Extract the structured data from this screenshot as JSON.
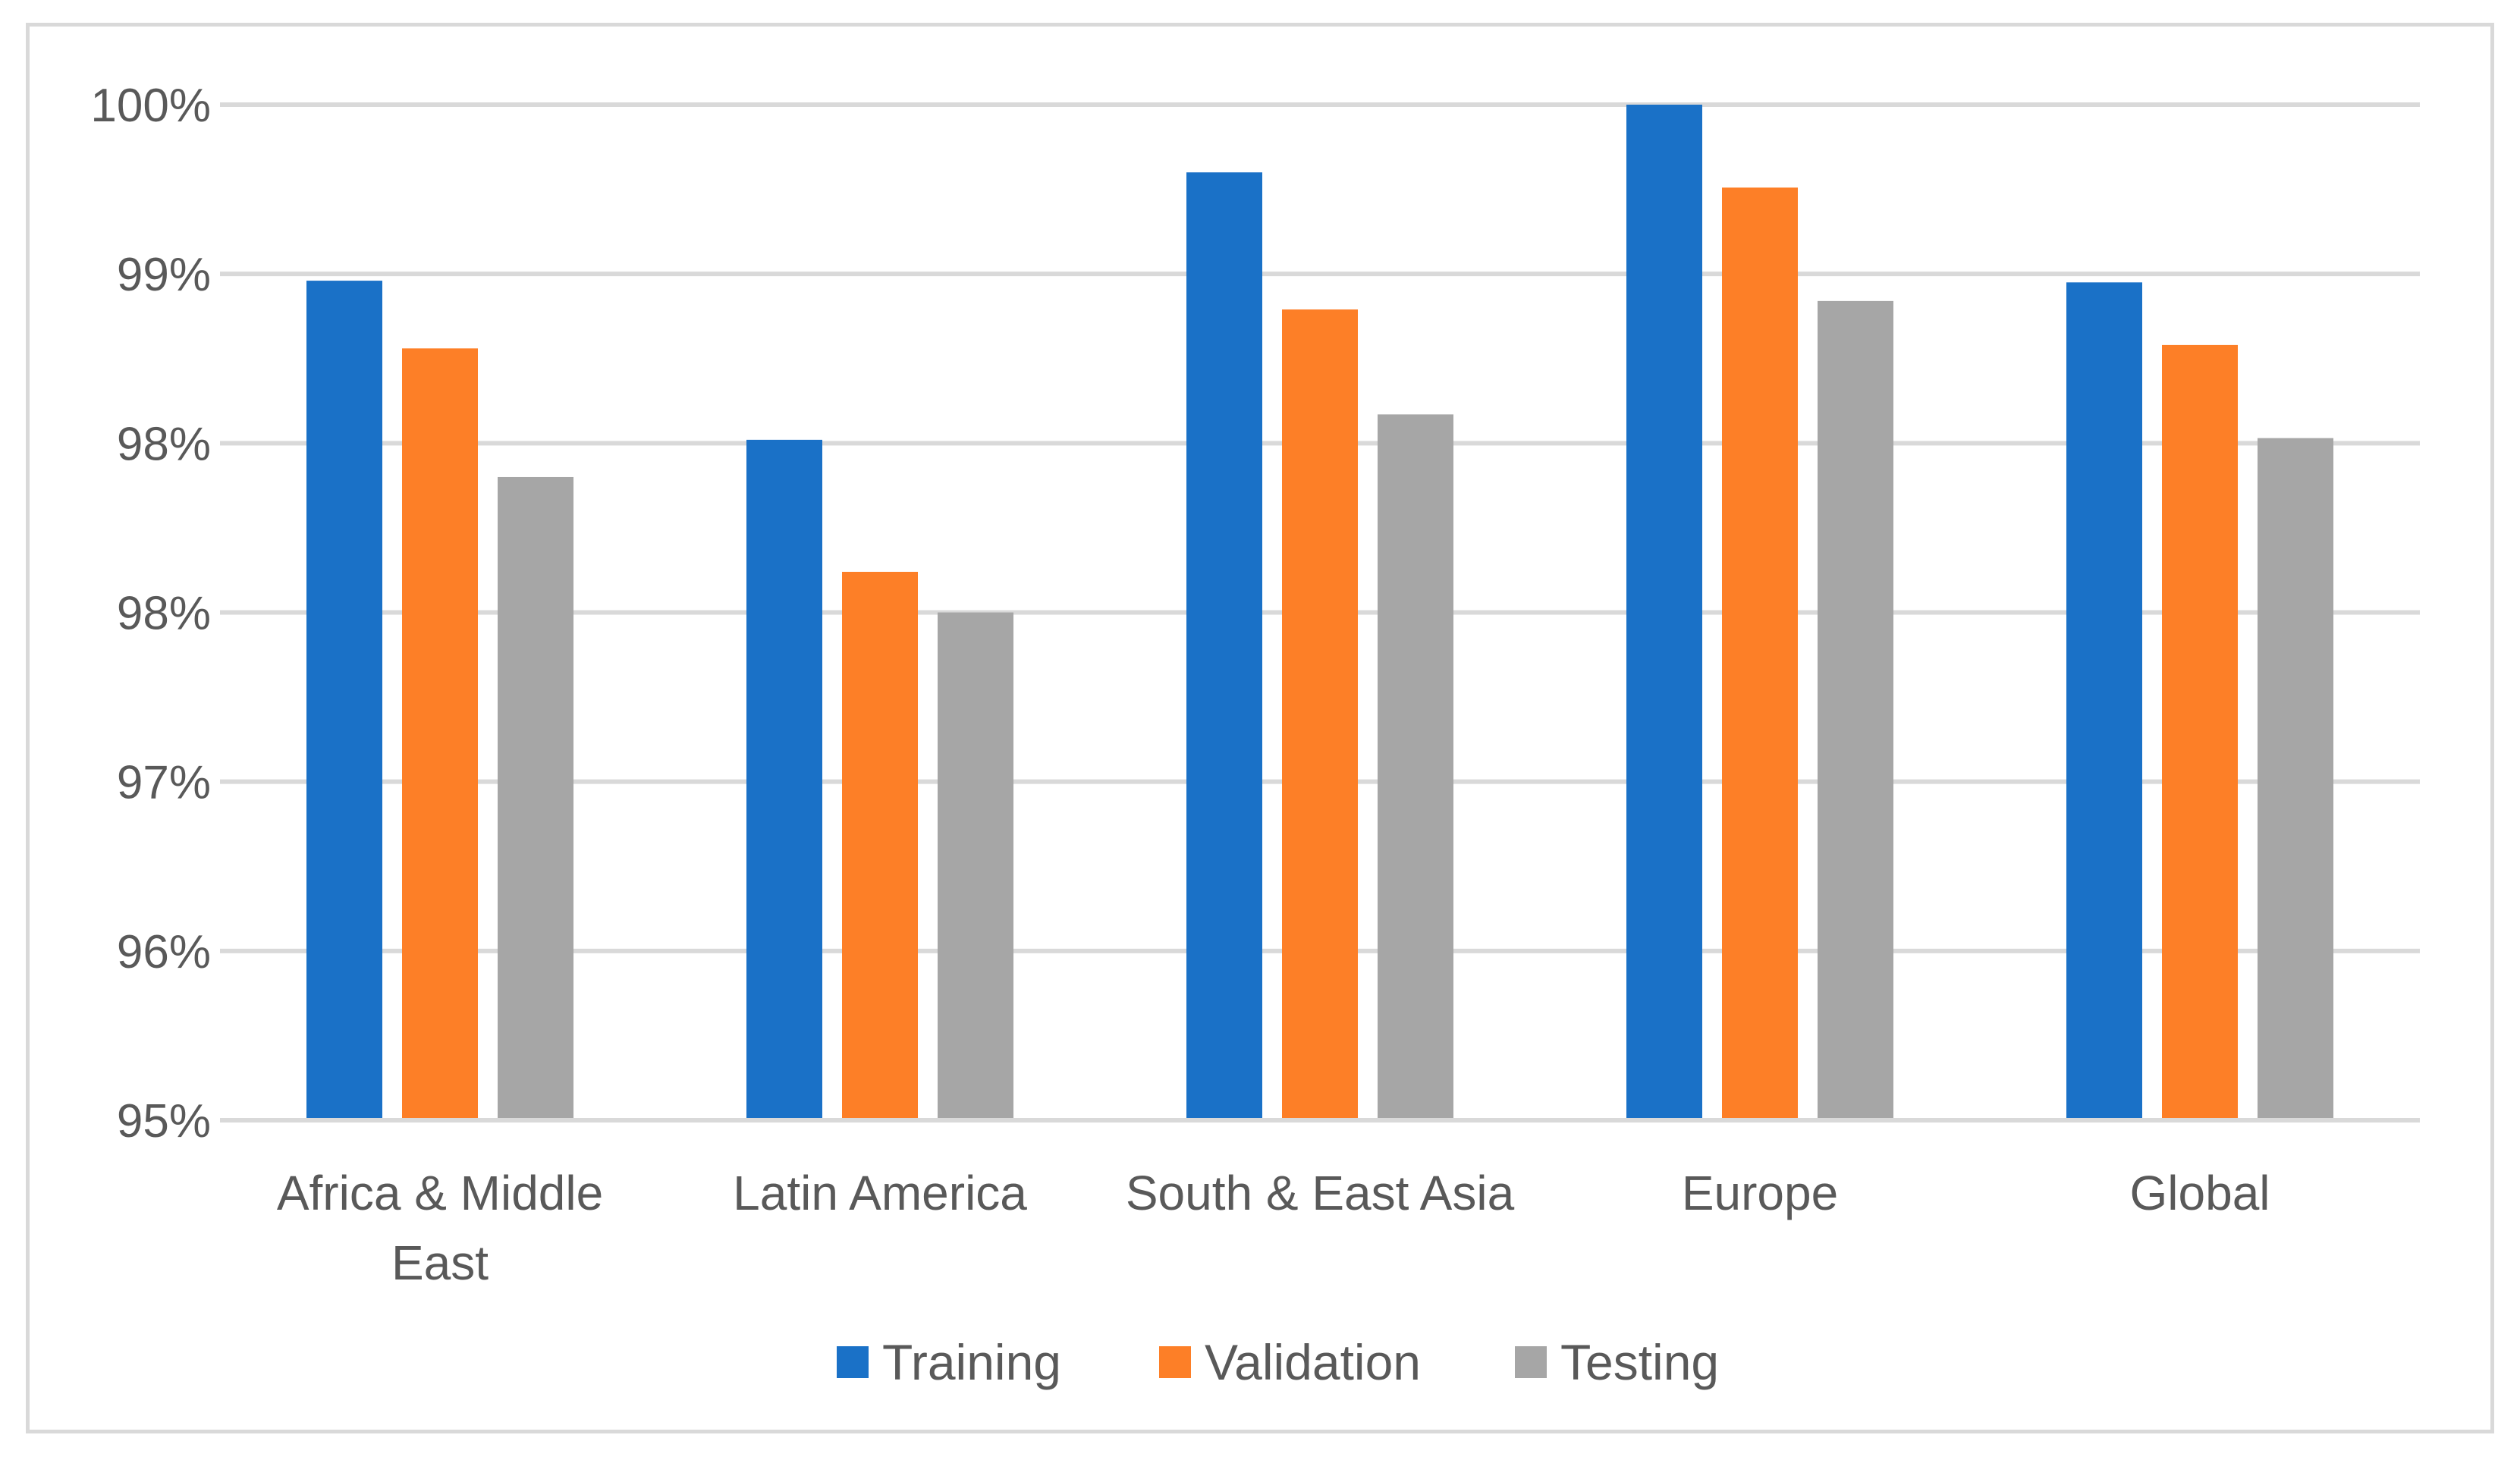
{
  "chart_data": {
    "type": "bar",
    "title": "",
    "xlabel": "",
    "ylabel": "",
    "categories": [
      [
        "Africa & Middle",
        "East"
      ],
      [
        "Latin America"
      ],
      [
        "South & East Asia"
      ],
      [
        "Europe"
      ],
      [
        "Global"
      ]
    ],
    "ytick_labels": [
      "95%",
      "96%",
      "97%",
      "98%",
      "98%",
      "99%",
      "100%"
    ],
    "ylim": [
      0.94,
      1.0
    ],
    "grid": true,
    "legend_position": "bottom",
    "series": [
      {
        "name": "Training",
        "color": "#1a71c7",
        "values": [
          0.9896,
          0.9802,
          0.996,
          1.0,
          0.9895
        ]
      },
      {
        "name": "Validation",
        "color": "#fd7f27",
        "values": [
          0.9856,
          0.9724,
          0.9879,
          0.9951,
          0.9858
        ]
      },
      {
        "name": "Testing",
        "color": "#a6a6a6",
        "values": [
          0.978,
          0.97,
          0.9817,
          0.9884,
          0.9803
        ]
      }
    ]
  }
}
